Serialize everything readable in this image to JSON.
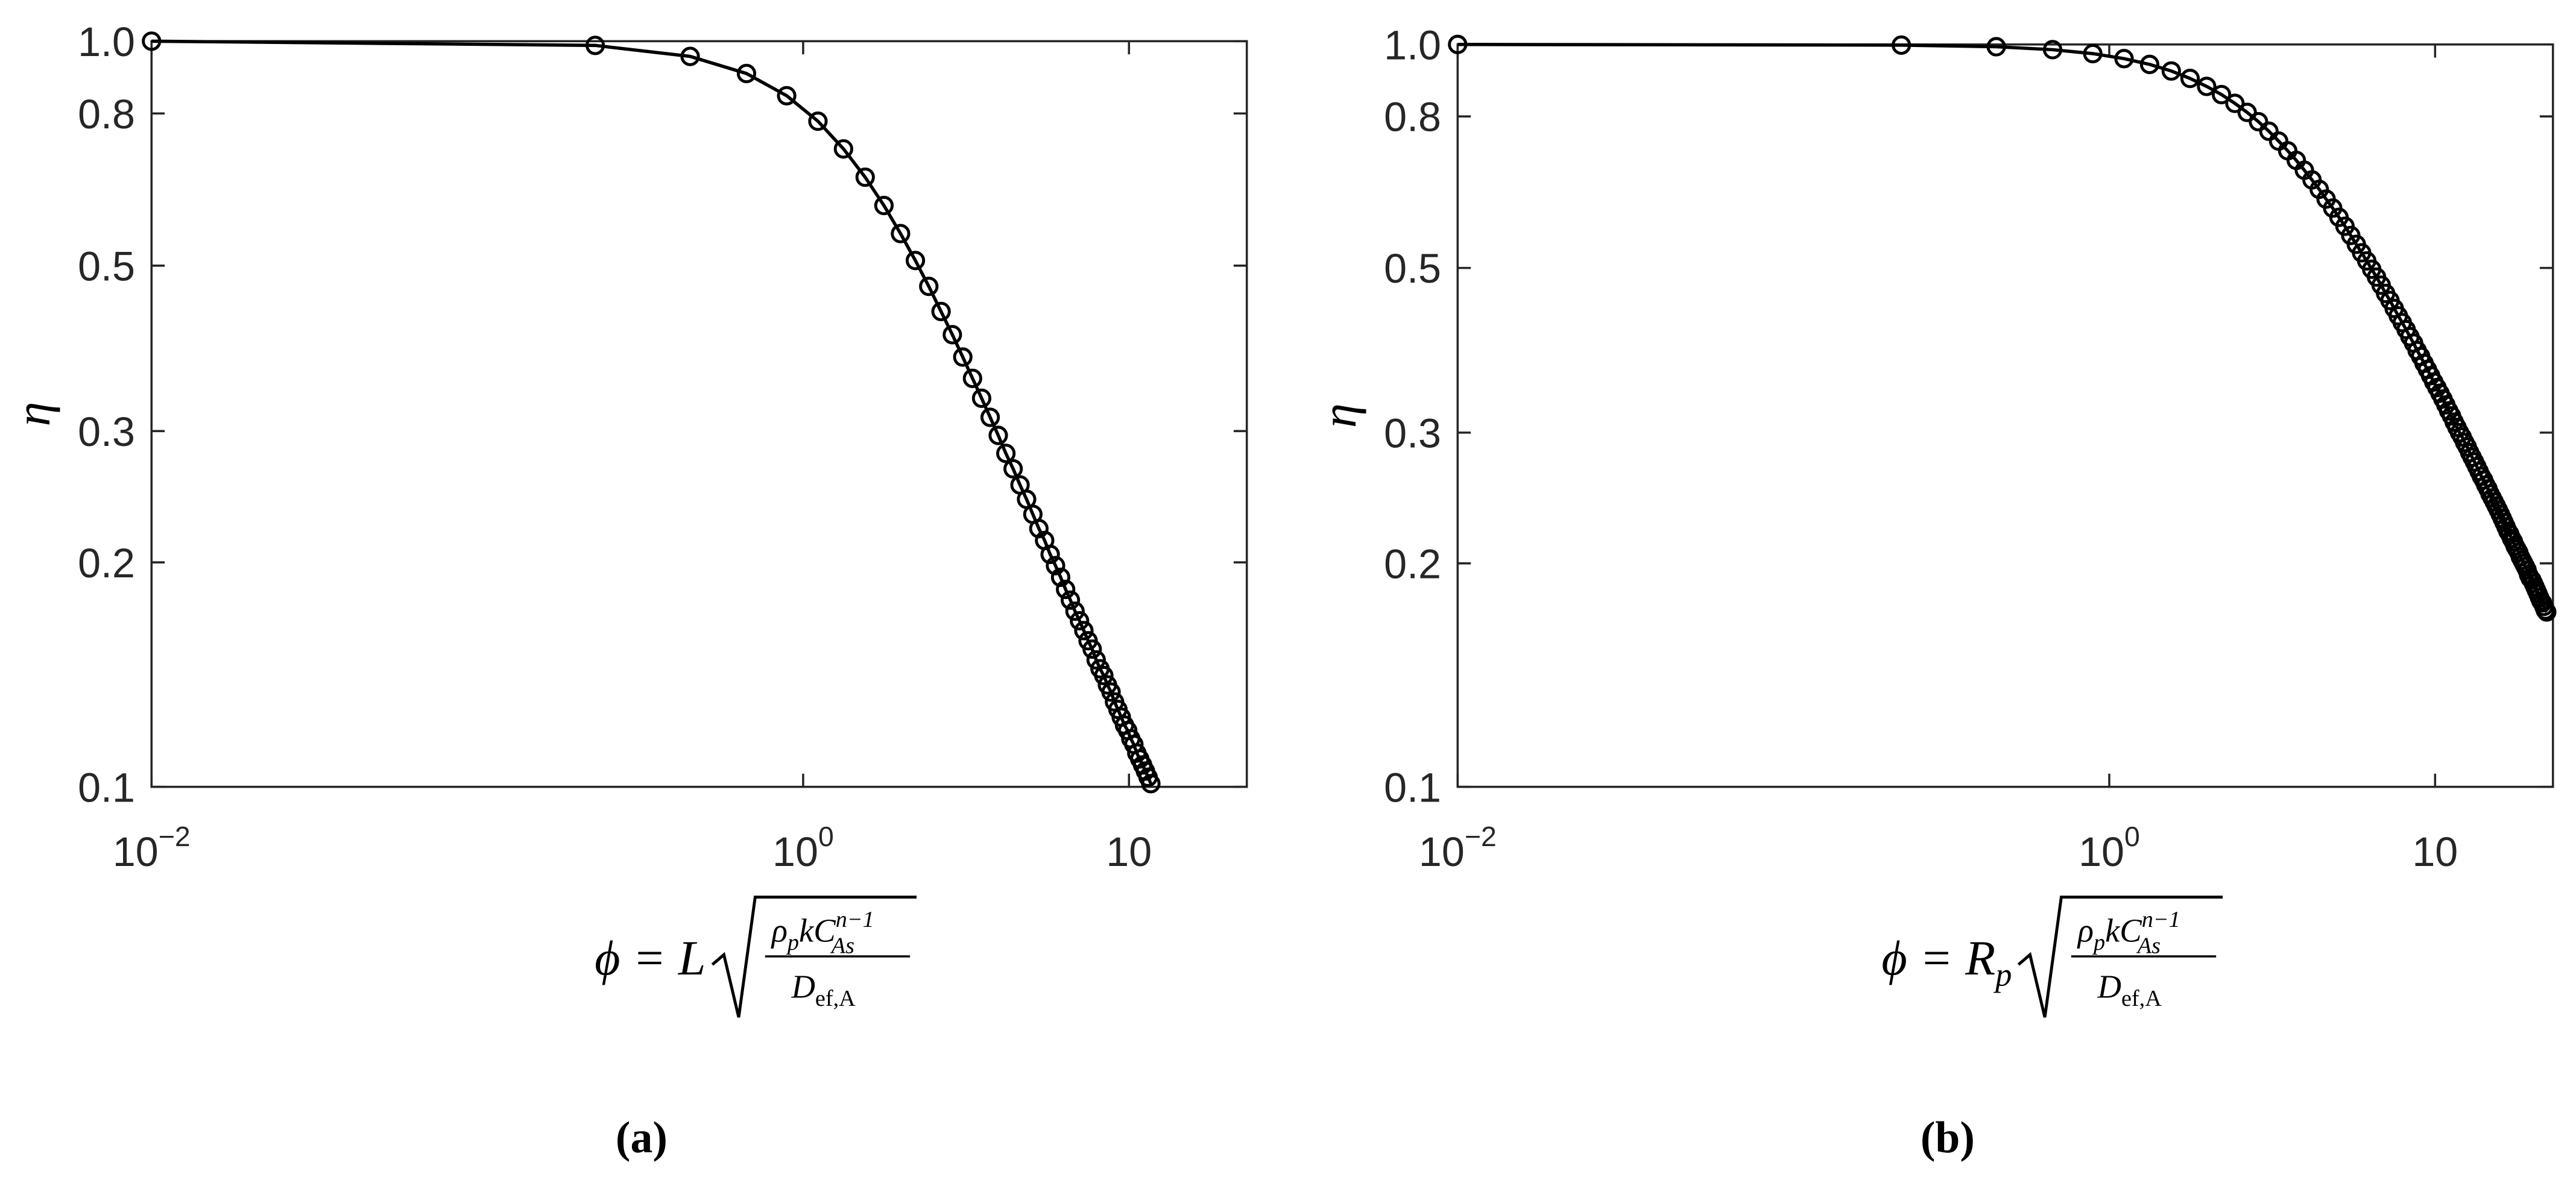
{
  "chart_data": [
    {
      "type": "line",
      "panel_label": "(a)",
      "color": "#000000",
      "xlog": true,
      "ylog": true,
      "ylabel": "η",
      "xlabel": {
        "main": [
          "ϕ = L"
        ],
        "numerator": [
          "ρ",
          "p",
          "kC",
          "n−1",
          "As"
        ],
        "denominator": [
          "D",
          "ef,A"
        ]
      },
      "xlim": [
        0.01,
        23
      ],
      "ylim": [
        0.1,
        1
      ],
      "xticks": [
        {
          "value": 0.01,
          "label": "10",
          "exponent": "−2"
        },
        {
          "value": 1,
          "label": "10",
          "exponent": "0"
        },
        10
      ],
      "yticks": [
        0.1,
        0.2,
        0.3,
        0.5,
        0.8,
        {
          "value": 1,
          "label": "1.0"
        }
      ],
      "x": [
        0.01,
        0.23,
        0.45,
        0.67,
        0.89,
        1.11,
        1.33,
        1.55,
        1.77,
        1.99,
        2.21,
        2.43,
        2.65,
        2.87,
        3.09,
        3.31,
        3.53,
        3.75,
        3.97,
        4.19,
        4.41,
        4.63,
        4.85,
        5.07,
        5.29,
        5.51,
        5.73,
        5.95,
        6.17,
        6.39,
        6.61,
        6.83,
        7.05,
        7.27,
        7.49,
        7.71,
        7.93,
        8.15,
        8.37,
        8.59,
        8.81,
        9.03,
        9.25,
        9.47,
        9.69,
        9.91,
        10.13,
        10.35,
        10.57,
        10.79,
        11.01,
        11.23,
        11.45,
        11.67
      ],
      "values": [
        1.0,
        0.987,
        0.954,
        0.905,
        0.845,
        0.781,
        0.717,
        0.657,
        0.602,
        0.552,
        0.508,
        0.469,
        0.434,
        0.404,
        0.377,
        0.353,
        0.332,
        0.313,
        0.296,
        0.28,
        0.267,
        0.254,
        0.243,
        0.232,
        0.222,
        0.214,
        0.205,
        0.198,
        0.191,
        0.184,
        0.178,
        0.172,
        0.167,
        0.162,
        0.157,
        0.153,
        0.148,
        0.144,
        0.141,
        0.137,
        0.134,
        0.13,
        0.127,
        0.124,
        0.121,
        0.119,
        0.116,
        0.114,
        0.111,
        0.109,
        0.107,
        0.105,
        0.103,
        0.101
      ]
    },
    {
      "type": "line",
      "panel_label": "(b)",
      "color": "#000000",
      "xlog": true,
      "ylog": true,
      "ylabel": "η",
      "xlabel": {
        "main": [
          "ϕ = R",
          "p"
        ],
        "numerator": [
          "ρ",
          "p",
          "kC",
          "n−1",
          "As"
        ],
        "denominator": [
          "D",
          "ef,A"
        ]
      },
      "xlim": [
        0.01,
        23
      ],
      "ylim": [
        0.1,
        1
      ],
      "xticks": [
        {
          "value": 0.01,
          "label": "10",
          "exponent": "−2"
        },
        {
          "value": 1,
          "label": "10",
          "exponent": "0"
        },
        10
      ],
      "yticks": [
        0.1,
        0.2,
        0.3,
        0.5,
        0.8,
        {
          "value": 1,
          "label": "1.0"
        }
      ],
      "x": [
        0.01,
        0.23,
        0.45,
        0.67,
        0.89,
        1.11,
        1.33,
        1.55,
        1.77,
        1.99,
        2.21,
        2.43,
        2.65,
        2.87,
        3.09,
        3.31,
        3.53,
        3.75,
        3.97,
        4.19,
        4.41,
        4.63,
        4.85,
        5.07,
        5.29,
        5.51,
        5.73,
        5.95,
        6.17,
        6.39,
        6.61,
        6.83,
        7.05,
        7.27,
        7.49,
        7.71,
        7.93,
        8.15,
        8.37,
        8.59,
        8.81,
        9.03,
        9.25,
        9.47,
        9.69,
        9.91,
        10.13,
        10.35,
        10.57,
        10.79,
        11.01,
        11.23,
        11.45,
        11.67,
        11.89,
        12.11,
        12.33,
        12.55,
        12.77,
        12.99,
        13.21,
        13.43,
        13.65,
        13.87,
        14.09,
        14.31,
        14.53,
        14.75,
        14.97,
        15.19,
        15.41,
        15.63,
        15.85,
        16.07,
        16.29,
        16.51,
        16.73,
        16.95,
        17.17,
        17.39,
        17.61,
        17.83,
        18.05,
        18.27,
        18.49,
        18.71,
        18.93,
        19.15,
        19.37,
        19.59,
        19.81,
        20.03,
        20.25,
        20.47,
        20.69,
        20.91,
        21.13,
        21.35,
        21.57,
        21.79,
        22.01
      ],
      "values": [
        1.0,
        0.998,
        0.993,
        0.984,
        0.972,
        0.957,
        0.94,
        0.921,
        0.9,
        0.878,
        0.856,
        0.833,
        0.81,
        0.787,
        0.764,
        0.741,
        0.719,
        0.698,
        0.677,
        0.657,
        0.638,
        0.619,
        0.602,
        0.585,
        0.569,
        0.553,
        0.538,
        0.524,
        0.511,
        0.498,
        0.486,
        0.474,
        0.462,
        0.452,
        0.441,
        0.431,
        0.422,
        0.413,
        0.404,
        0.396,
        0.387,
        0.38,
        0.372,
        0.365,
        0.358,
        0.351,
        0.345,
        0.339,
        0.333,
        0.327,
        0.321,
        0.316,
        0.31,
        0.305,
        0.3,
        0.296,
        0.291,
        0.287,
        0.282,
        0.278,
        0.274,
        0.27,
        0.266,
        0.262,
        0.259,
        0.255,
        0.252,
        0.248,
        0.245,
        0.242,
        0.239,
        0.236,
        0.233,
        0.23,
        0.227,
        0.224,
        0.221,
        0.219,
        0.216,
        0.214,
        0.211,
        0.209,
        0.207,
        0.204,
        0.202,
        0.2,
        0.198,
        0.196,
        0.193,
        0.191,
        0.19,
        0.188,
        0.186,
        0.184,
        0.182,
        0.18,
        0.178,
        0.177,
        0.175,
        0.173,
        0.172
      ]
    }
  ]
}
